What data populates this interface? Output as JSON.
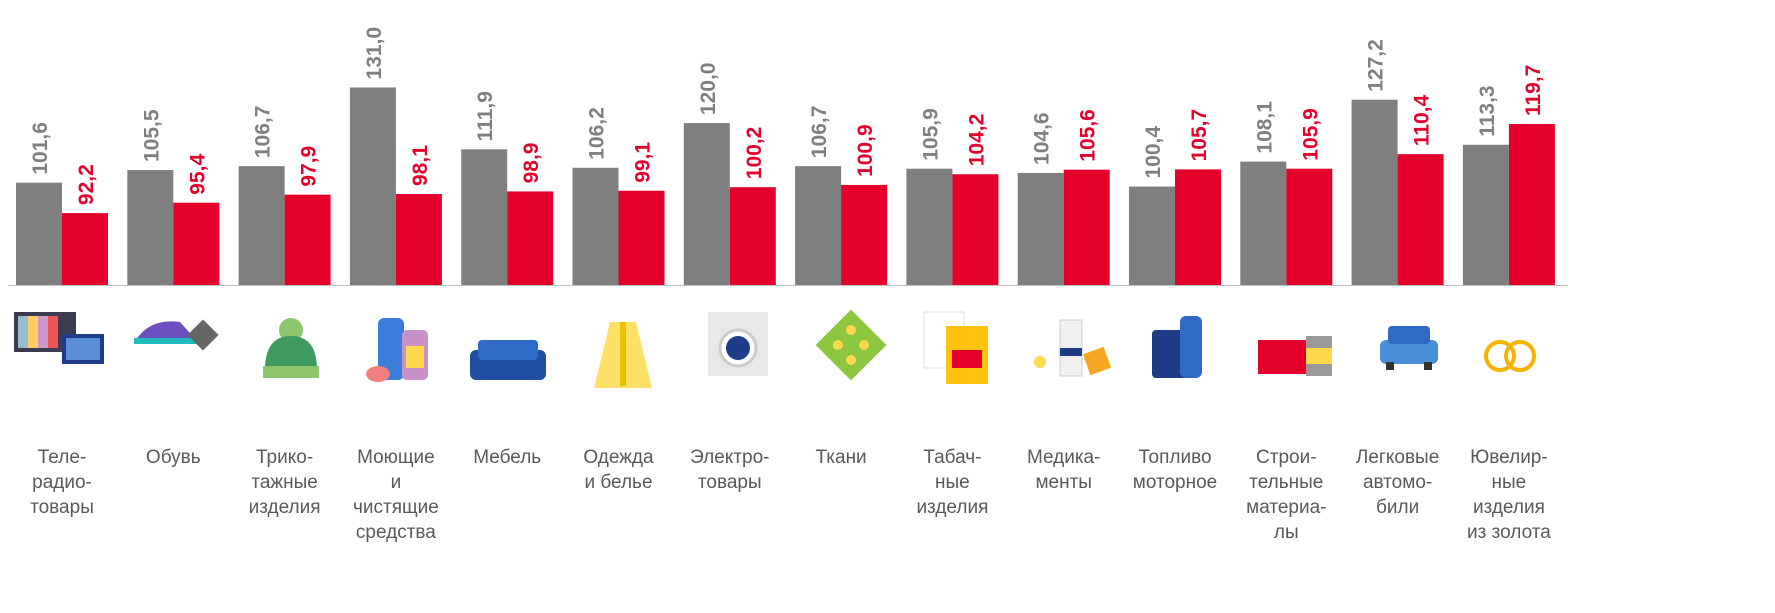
{
  "chart_data": {
    "type": "bar",
    "categories": [
      "Теле-\nрадио-\nтовары",
      "Обувь",
      "Трико-\nтажные\nизделия",
      "Моющие\nи\nчистящие\nсредства",
      "Мебель",
      "Одежда\nи белье",
      "Электро-\nтовары",
      "Ткани",
      "Табач-\nные\nизделия",
      "Медика-\nменты",
      "Топливо\nмоторное",
      "Строи-\nтельные\nматериа-\nлы",
      "Легковые\nавтомо-\nбили",
      "Ювелир-\nные\nизделия\nиз золота"
    ],
    "series": [
      {
        "color": "#7f7f7f",
        "values": [
          101.6,
          105.5,
          106.7,
          131.0,
          111.9,
          106.2,
          120.0,
          106.7,
          105.9,
          104.6,
          100.4,
          108.1,
          127.2,
          113.3
        ],
        "value_labels": [
          "101,6",
          "105,5",
          "106,7",
          "131,0",
          "111,9",
          "106,2",
          "120,0",
          "106,7",
          "105,9",
          "104,6",
          "100,4",
          "108,1",
          "127,2",
          "113,3"
        ]
      },
      {
        "color": "#e4002b",
        "values": [
          92.2,
          95.4,
          97.9,
          98.1,
          98.9,
          99.1,
          100.2,
          100.9,
          104.2,
          105.6,
          105.7,
          105.9,
          110.4,
          119.7
        ],
        "value_labels": [
          "92,2",
          "95,4",
          "97,9",
          "98,1",
          "98,9",
          "99,1",
          "100,2",
          "100,9",
          "104,2",
          "105,6",
          "105,7",
          "105,9",
          "110,4",
          "119,7"
        ]
      }
    ],
    "ylim": [
      70,
      158
    ]
  }
}
